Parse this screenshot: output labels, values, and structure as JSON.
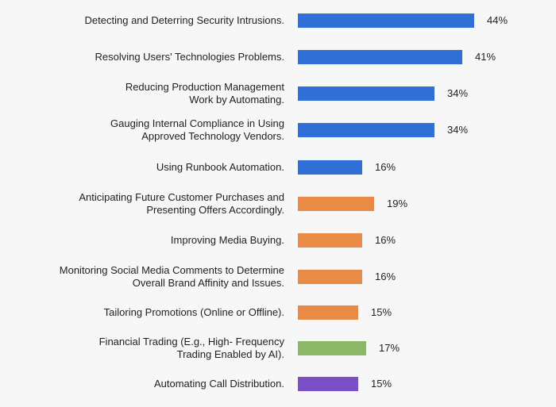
{
  "chart_data": {
    "type": "bar",
    "orientation": "horizontal",
    "categories": [
      [
        "Detecting and Deterring Security Intrusions."
      ],
      [
        "Resolving Users' Technologies Problems."
      ],
      [
        "Reducing Production Management",
        "Work by Automating."
      ],
      [
        "Gauging Internal Compliance in Using",
        "Approved Technology Vendors."
      ],
      [
        "Using Runbook Automation."
      ],
      [
        "Anticipating Future Customer Purchases and",
        "Presenting Offers Accordingly."
      ],
      [
        "Improving Media Buying."
      ],
      [
        "Monitoring Social Media Comments to Determine",
        "Overall Brand Affinity and Issues."
      ],
      [
        "Tailoring Promotions (Online or Offline)."
      ],
      [
        "Financial Trading (E.g., High- Frequency",
        "Trading Enabled by AI)."
      ],
      [
        "Automating Call Distribution."
      ]
    ],
    "values": [
      44,
      41,
      34,
      34,
      16,
      19,
      16,
      16,
      15,
      17,
      15
    ],
    "value_labels": [
      "44%",
      "41%",
      "34%",
      "34%",
      "16%",
      "19%",
      "16%",
      "16%",
      "15%",
      "17%",
      "15%"
    ],
    "bar_colors": [
      "#2f6fd6",
      "#2f6fd6",
      "#2f6fd6",
      "#2f6fd6",
      "#2f6fd6",
      "#ea8a47",
      "#ea8a47",
      "#ea8a47",
      "#ea8a47",
      "#8bb866",
      "#7b4fc6"
    ],
    "xlim": [
      0,
      44
    ],
    "title": "",
    "xlabel": "",
    "ylabel": ""
  }
}
